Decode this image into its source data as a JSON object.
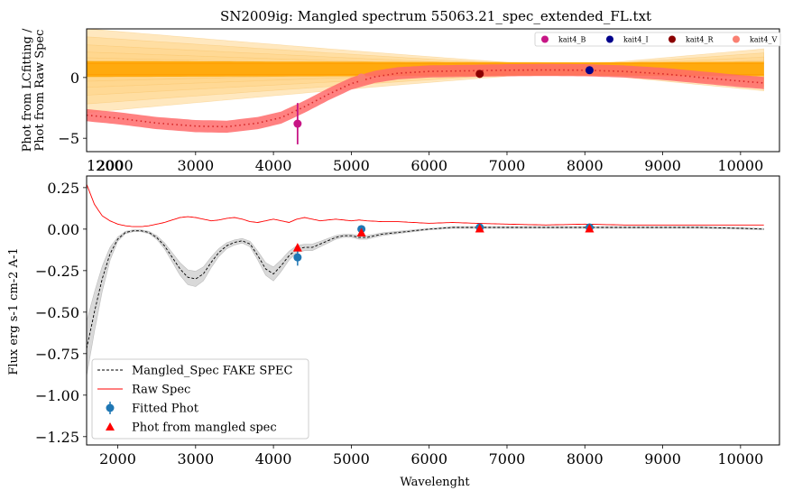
{
  "chart_data": [
    {
      "type": "line",
      "title": "SN2009ig: Mangled spectrum 55063.21_spec_extended_FL.txt",
      "ylabel_line1": "Phot from LCfitting /",
      "ylabel_line2": "Phot from Raw Spec",
      "xlim": [
        1600,
        10500
      ],
      "ylim": [
        -6.1,
        4.0
      ],
      "xticks": [
        "3000",
        "4000",
        "5000",
        "6000",
        "7000",
        "8000",
        "9000",
        "10000"
      ],
      "xtick_values": [
        3000,
        4000,
        5000,
        6000,
        7000,
        8000,
        9000,
        10000
      ],
      "yticks": [
        "0",
        "−5"
      ],
      "ytick_values": [
        0,
        -5
      ],
      "overlap_tick_labels": [
        "1200",
        "2000"
      ],
      "ratio_curve": {
        "x": [
          1600,
          2000,
          2500,
          3000,
          3400,
          3800,
          4100,
          4400,
          4700,
          5000,
          5300,
          5600,
          6000,
          6500,
          7000,
          7500,
          8000,
          8500,
          9000,
          9500,
          10000,
          10300
        ],
        "y": [
          -3.1,
          -3.35,
          -3.75,
          -4.0,
          -4.05,
          -3.75,
          -3.3,
          -2.4,
          -1.4,
          -0.5,
          0.05,
          0.35,
          0.5,
          0.55,
          0.6,
          0.62,
          0.6,
          0.5,
          0.3,
          0.0,
          -0.3,
          -0.45
        ]
      },
      "points": [
        {
          "name": "kait4_B",
          "x": 4310,
          "y": -3.8,
          "err": 1.7,
          "color": "#c71585"
        },
        {
          "name": "kait4_V",
          "x": 5130,
          "y": 0.0,
          "err": 0.2,
          "color": "#fa8072"
        },
        {
          "name": "kait4_R",
          "x": 6650,
          "y": 0.3,
          "err": 0.15,
          "color": "#8b0000"
        },
        {
          "name": "kait4_I",
          "x": 8060,
          "y": 0.6,
          "err": 0.1,
          "color": "#00008b"
        }
      ],
      "legend": [
        {
          "label": "kait4_B",
          "color": "#c71585"
        },
        {
          "label": "kait4_I",
          "color": "#00008b"
        },
        {
          "label": "kait4_R",
          "color": "#8b0000"
        },
        {
          "label": "kait4_V",
          "color": "#fa8072"
        }
      ],
      "legend_position": "top-right",
      "colors": {
        "band_light": "#ffd58a",
        "band_dark": "#ffa500",
        "ratio_band": "#ff6b6b",
        "ratio_line": "#d62728"
      }
    },
    {
      "type": "line",
      "xlabel": "Wavelenght",
      "ylabel": "Flux erg s-1 cm-2 A-1",
      "xlim": [
        1600,
        10500
      ],
      "ylim": [
        -1.3,
        0.32
      ],
      "xticks": [
        "2000",
        "3000",
        "4000",
        "5000",
        "6000",
        "7000",
        "8000",
        "9000",
        "10000"
      ],
      "xtick_values": [
        2000,
        3000,
        4000,
        5000,
        6000,
        7000,
        8000,
        9000,
        10000
      ],
      "yticks": [
        "0.25",
        "0.00",
        "−0.25",
        "−0.50",
        "−0.75",
        "−1.00",
        "−1.25"
      ],
      "ytick_values": [
        0.25,
        0.0,
        -0.25,
        -0.5,
        -0.75,
        -1.0,
        -1.25
      ],
      "series": [
        {
          "name": "Mangled_Spec FAKE SPEC",
          "style": "dashed",
          "color": "#000000",
          "x": [
            1600,
            1700,
            1800,
            1900,
            2000,
            2100,
            2200,
            2300,
            2400,
            2500,
            2600,
            2700,
            2800,
            2900,
            3000,
            3100,
            3200,
            3300,
            3400,
            3500,
            3600,
            3700,
            3800,
            3900,
            4000,
            4100,
            4200,
            4300,
            4400,
            4500,
            4600,
            4700,
            4800,
            4900,
            5000,
            5100,
            5200,
            5400,
            5600,
            5800,
            6000,
            6300,
            6600,
            7000,
            7500,
            8000,
            8500,
            9000,
            9500,
            10000,
            10300
          ],
          "y": [
            -0.72,
            -0.5,
            -0.3,
            -0.15,
            -0.06,
            -0.02,
            -0.01,
            -0.01,
            -0.02,
            -0.05,
            -0.1,
            -0.17,
            -0.24,
            -0.29,
            -0.3,
            -0.27,
            -0.2,
            -0.14,
            -0.1,
            -0.08,
            -0.07,
            -0.09,
            -0.16,
            -0.24,
            -0.27,
            -0.22,
            -0.16,
            -0.12,
            -0.11,
            -0.11,
            -0.09,
            -0.07,
            -0.05,
            -0.04,
            -0.04,
            -0.05,
            -0.05,
            -0.03,
            -0.02,
            -0.01,
            0.0,
            0.01,
            0.01,
            0.01,
            0.01,
            0.01,
            0.01,
            0.01,
            0.01,
            0.005,
            0.0
          ]
        },
        {
          "name": "Raw Spec",
          "style": "solid",
          "color": "#ff0000",
          "x": [
            1600,
            1700,
            1800,
            1900,
            2000,
            2100,
            2200,
            2300,
            2400,
            2500,
            2600,
            2700,
            2800,
            2900,
            3000,
            3100,
            3200,
            3300,
            3400,
            3500,
            3600,
            3700,
            3800,
            3900,
            4000,
            4100,
            4200,
            4300,
            4400,
            4500,
            4600,
            4700,
            4800,
            4900,
            5000,
            5100,
            5200,
            5400,
            5600,
            5800,
            6000,
            6300,
            6600,
            7000,
            7500,
            8000,
            8500,
            9000,
            9500,
            10000,
            10300
          ],
          "y": [
            0.27,
            0.15,
            0.08,
            0.05,
            0.03,
            0.02,
            0.015,
            0.015,
            0.02,
            0.03,
            0.04,
            0.055,
            0.07,
            0.075,
            0.07,
            0.06,
            0.05,
            0.055,
            0.065,
            0.07,
            0.06,
            0.045,
            0.04,
            0.05,
            0.06,
            0.05,
            0.04,
            0.06,
            0.07,
            0.06,
            0.05,
            0.055,
            0.06,
            0.055,
            0.05,
            0.055,
            0.05,
            0.045,
            0.045,
            0.04,
            0.035,
            0.04,
            0.035,
            0.03,
            0.025,
            0.03,
            0.025,
            0.025,
            0.025,
            0.025,
            0.025
          ]
        }
      ],
      "fitted_phot": {
        "name": "Fitted Phot",
        "color": "#1f77b4",
        "points": [
          {
            "x": 4310,
            "y": -0.17,
            "err": 0.05
          },
          {
            "x": 5130,
            "y": 0.0,
            "err": 0.015
          },
          {
            "x": 6650,
            "y": 0.01,
            "err": 0.01
          },
          {
            "x": 8060,
            "y": 0.01,
            "err": 0.01
          }
        ]
      },
      "phot_from_mangled": {
        "name": "Phot from mangled spec",
        "color": "#ff0000",
        "points": [
          {
            "x": 4310,
            "y": -0.11
          },
          {
            "x": 5130,
            "y": -0.02
          },
          {
            "x": 6650,
            "y": 0.005
          },
          {
            "x": 8060,
            "y": 0.005
          }
        ]
      },
      "legend": [
        {
          "label": "Mangled_Spec FAKE SPEC",
          "kind": "dashed-line"
        },
        {
          "label": "Raw Spec",
          "kind": "red-line"
        },
        {
          "label": "Fitted Phot",
          "kind": "errorbar-marker"
        },
        {
          "label": "Phot from mangled spec",
          "kind": "triangle"
        }
      ],
      "legend_position": "lower-left",
      "colors": {
        "uncertainty_band": "#d9d9d9"
      }
    }
  ]
}
